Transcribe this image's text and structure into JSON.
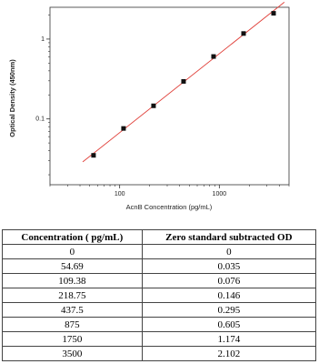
{
  "chart_data": {
    "type": "scatter",
    "x_label": "AcnB Concentration (pg/mL)",
    "y_label": "Optical Density (450nm)",
    "x": [
      54.69,
      109.38,
      218.75,
      437.5,
      875,
      1750,
      3500
    ],
    "values": [
      0.035,
      0.076,
      0.146,
      0.295,
      0.605,
      1.174,
      2.102
    ],
    "color": "#111111",
    "fit_color": "#e0403a",
    "log_x": true,
    "log_y": true,
    "xlim": [
      20,
      5000
    ],
    "ylim": [
      0.015,
      2.5
    ],
    "xticks": [
      100,
      1000
    ],
    "yticks": [
      0.1,
      1
    ]
  },
  "table": {
    "header": [
      "Concentration ( pg/mL)",
      "Zero standard subtracted OD"
    ],
    "rows": [
      [
        "0",
        "0"
      ],
      [
        "54.69",
        "0.035"
      ],
      [
        "109.38",
        "0.076"
      ],
      [
        "218.75",
        "0.146"
      ],
      [
        "437.5",
        "0.295"
      ],
      [
        "875",
        "0.605"
      ],
      [
        "1750",
        "1.174"
      ],
      [
        "3500",
        "2.102"
      ]
    ]
  }
}
